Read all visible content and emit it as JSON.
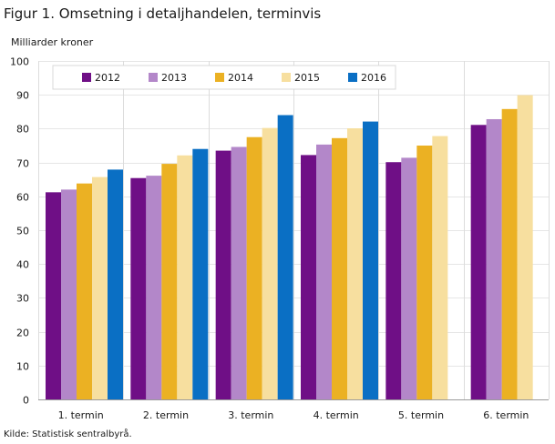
{
  "page": {
    "title": "Figur 1. Omsetning i detaljhandelen, terminvis",
    "unit_label": "Milliarder  kroner",
    "source": "Kilde: Statistisk sentralbyrå."
  },
  "chart_data": {
    "type": "bar",
    "title": "Figur 1. Omsetning i detaljhandelen, terminvis",
    "ylabel": "Milliarder  kroner",
    "xlabel": "",
    "ylim": [
      0,
      100
    ],
    "yticks": [
      0,
      10,
      20,
      30,
      40,
      50,
      60,
      70,
      80,
      90,
      100
    ],
    "grid": "vertical separators between categories",
    "legend_position": "top-left",
    "categories": [
      "1. termin",
      "2. termin",
      "3. termin",
      "4. termin",
      "5. termin",
      "6. termin"
    ],
    "series": [
      {
        "name": "2012",
        "color": "#6f0f86",
        "values": [
          61.2,
          65.4,
          73.5,
          72.2,
          70.1,
          81.1
        ]
      },
      {
        "name": "2013",
        "color": "#b387c9",
        "values": [
          62.0,
          66.1,
          74.6,
          75.3,
          71.4,
          82.8
        ]
      },
      {
        "name": "2014",
        "color": "#ebb123",
        "values": [
          63.8,
          69.6,
          77.5,
          77.2,
          75.0,
          85.8
        ]
      },
      {
        "name": "2015",
        "color": "#f7df9f",
        "values": [
          65.7,
          72.1,
          80.2,
          80.1,
          77.8,
          89.9
        ]
      },
      {
        "name": "2016",
        "color": "#0a6fc4",
        "values": [
          67.9,
          74.0,
          84.0,
          82.1,
          null,
          null
        ]
      }
    ]
  }
}
